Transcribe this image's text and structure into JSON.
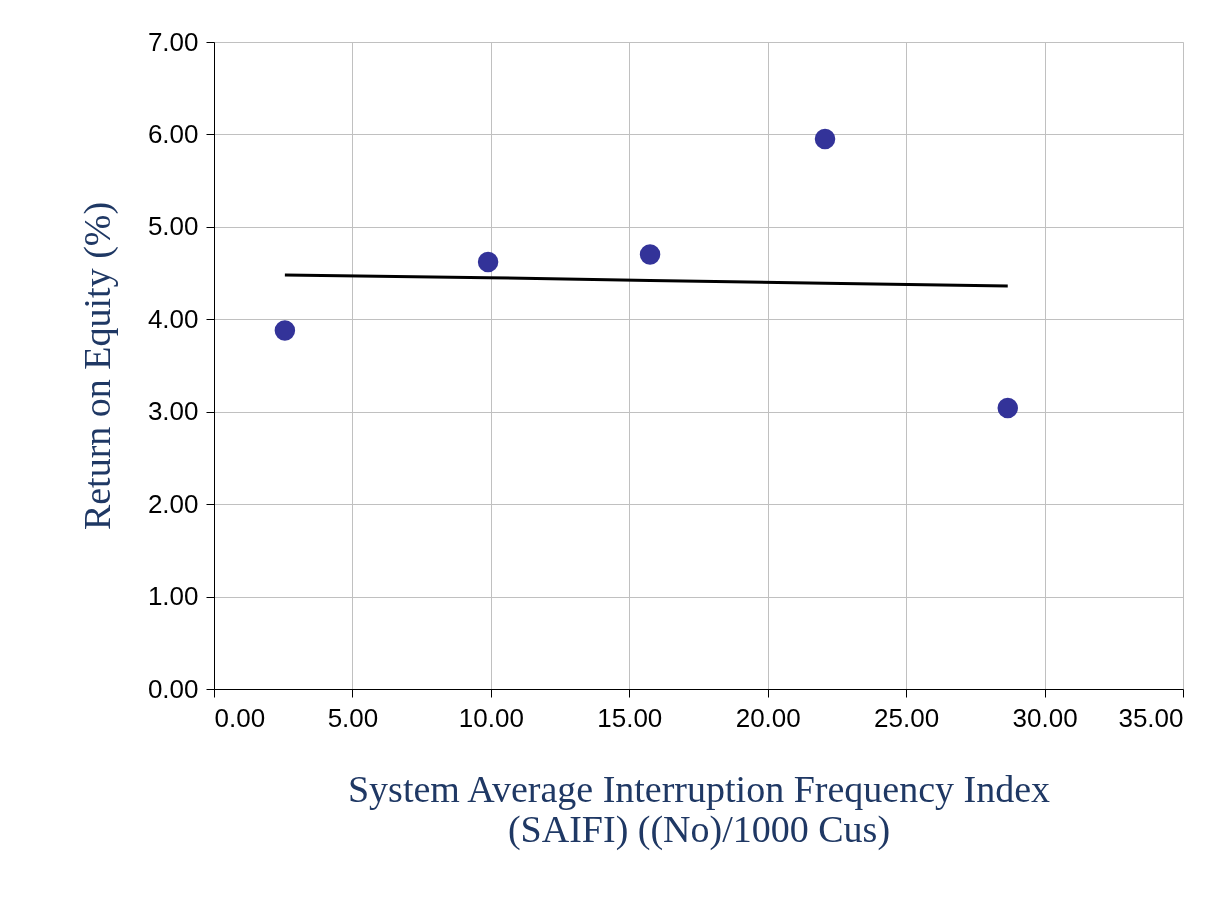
{
  "chart_data": {
    "type": "scatter",
    "xlabel": "System Average Interruption Frequency Index\n(SAIFI) ((No)/1000 Cus)",
    "ylabel": "Return on Equity (%)",
    "x": [
      2.56,
      9.9,
      15.75,
      22.07,
      28.67
    ],
    "series": [
      {
        "color": "#333399",
        "values": [
          3.88,
          4.62,
          4.7,
          5.95,
          3.04
        ],
        "marker": "circle"
      },
      {
        "type": "line",
        "color": "#000000",
        "x": [
          2.56,
          9.9,
          15.75,
          22.07,
          28.67
        ],
        "values": [
          4.48,
          4.45,
          4.42,
          4.39,
          4.36
        ],
        "marker": "none"
      }
    ],
    "xlim": [
      0,
      35
    ],
    "xticks": [
      {
        "value": 0,
        "label": "0.00"
      },
      {
        "value": 5,
        "label": "5.00"
      },
      {
        "value": 10,
        "label": "10.00"
      },
      {
        "value": 15,
        "label": "15.00"
      },
      {
        "value": 20,
        "label": "20.00"
      },
      {
        "value": 25,
        "label": "25.00"
      },
      {
        "value": 30,
        "label": "30.00"
      },
      {
        "value": 35,
        "label": "35.00"
      }
    ],
    "ylim": [
      0,
      7
    ],
    "yticks": [
      {
        "value": 0,
        "label": "0.00"
      },
      {
        "value": 1,
        "label": "1.00"
      },
      {
        "value": 2,
        "label": "2.00"
      },
      {
        "value": 3,
        "label": "3.00"
      },
      {
        "value": 4,
        "label": "4.00"
      },
      {
        "value": 5,
        "label": "5.00"
      },
      {
        "value": 6,
        "label": "6.00"
      },
      {
        "value": 7,
        "label": "7.00"
      }
    ],
    "grid": true
  }
}
